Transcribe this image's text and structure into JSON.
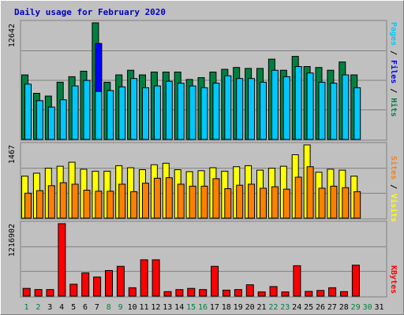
{
  "chart_data": {
    "type": "bar",
    "title": "Daily usage for February 2020",
    "days": [
      "1",
      "2",
      "3",
      "4",
      "5",
      "6",
      "7",
      "8",
      "9",
      "10",
      "11",
      "12",
      "13",
      "14",
      "15",
      "16",
      "17",
      "18",
      "19",
      "20",
      "21",
      "22",
      "23",
      "24",
      "25",
      "26",
      "27",
      "28",
      "29",
      "30",
      "31"
    ],
    "weekend_days": [
      "1",
      "2",
      "8",
      "9",
      "15",
      "16",
      "22",
      "23",
      "29",
      "30"
    ],
    "colors": {
      "background": "#c0c0c0",
      "panel_border": "#808080",
      "gridline": "#808080",
      "hits": "#008040",
      "files": "#0000ff",
      "pages": "#00c8ff",
      "visits": "#ffff00",
      "sites": "#ff8000",
      "kbytes": "#ff0000",
      "weekday_label": "#000000",
      "weekend_label": "#008040",
      "title": "#0000c0"
    },
    "panels": [
      {
        "id": "hits",
        "ymax_label": "12642",
        "ymax": 12642,
        "series": [
          {
            "name": "Hits",
            "color": "#008040",
            "values": [
              7000,
              5000,
              4700,
              6200,
              6800,
              7400,
              12642,
              6200,
              7000,
              7500,
              7000,
              7300,
              7300,
              7300,
              6500,
              6700,
              7300,
              7600,
              7800,
              7700,
              7700,
              8700,
              7500,
              9000,
              7900,
              7800,
              7500,
              8400,
              7000,
              null,
              null
            ]
          },
          {
            "name": "Files",
            "color": "#0000ff",
            "values": [
              null,
              null,
              null,
              null,
              null,
              null,
              10400,
              null,
              null,
              null,
              null,
              null,
              null,
              null,
              null,
              null,
              null,
              null,
              null,
              null,
              null,
              null,
              null,
              null,
              null,
              null,
              null,
              null,
              null,
              null,
              null
            ]
          },
          {
            "name": "Pages",
            "color": "#00c8ff",
            "values": [
              6000,
              4200,
              3500,
              4300,
              5800,
              6400,
              5200,
              5300,
              5700,
              6600,
              5600,
              5800,
              6300,
              6100,
              5800,
              5600,
              6100,
              6900,
              6600,
              6600,
              6200,
              7500,
              6800,
              7900,
              7200,
              6200,
              6100,
              7000,
              5600,
              null,
              null
            ]
          }
        ]
      },
      {
        "id": "visits",
        "ymax_label": "1467",
        "ymax": 1467,
        "series": [
          {
            "name": "Visits",
            "color": "#ffff00",
            "values": [
              840,
              900,
              1000,
              1040,
              1120,
              980,
              940,
              940,
              1050,
              1010,
              970,
              1070,
              1100,
              970,
              930,
              950,
              1010,
              940,
              1030,
              1050,
              960,
              1000,
              1040,
              1270,
              1467,
              920,
              980,
              960,
              840,
              null,
              null
            ]
          },
          {
            "name": "Sites",
            "color": "#ff8000",
            "values": [
              500,
              550,
              650,
              710,
              680,
              560,
              540,
              540,
              680,
              530,
              700,
              800,
              810,
              680,
              640,
              640,
              790,
              590,
              660,
              680,
              600,
              630,
              580,
              820,
              1030,
              600,
              640,
              610,
              530,
              null,
              null
            ]
          }
        ]
      },
      {
        "id": "kbytes",
        "ymax_label": "1216902",
        "ymax": 1216902,
        "series": [
          {
            "name": "KBytes",
            "color": "#ff0000",
            "values": [
              130000,
              110000,
              110000,
              1216902,
              200000,
              390000,
              320000,
              430000,
              500000,
              140000,
              610000,
              610000,
              75000,
              110000,
              130000,
              110000,
              500000,
              100000,
              110000,
              190000,
              70000,
              160000,
              70000,
              510000,
              80000,
              95000,
              140000,
              75000,
              520000,
              null,
              null
            ]
          }
        ]
      }
    ],
    "side_labels": {
      "hits_panel": [
        {
          "text": "Pages",
          "color": "#00c8ff"
        },
        {
          "text": " / ",
          "color": "#000000"
        },
        {
          "text": "Files",
          "color": "#0000ff"
        },
        {
          "text": " / ",
          "color": "#000000"
        },
        {
          "text": "Hits",
          "color": "#008040"
        }
      ],
      "visits_panel": [
        {
          "text": "Sites",
          "color": "#ff8000"
        },
        {
          "text": " / ",
          "color": "#000000"
        },
        {
          "text": "Visits",
          "color": "#ffff00"
        }
      ],
      "kbytes_panel": [
        {
          "text": "KBytes",
          "color": "#ff0000"
        }
      ]
    }
  }
}
